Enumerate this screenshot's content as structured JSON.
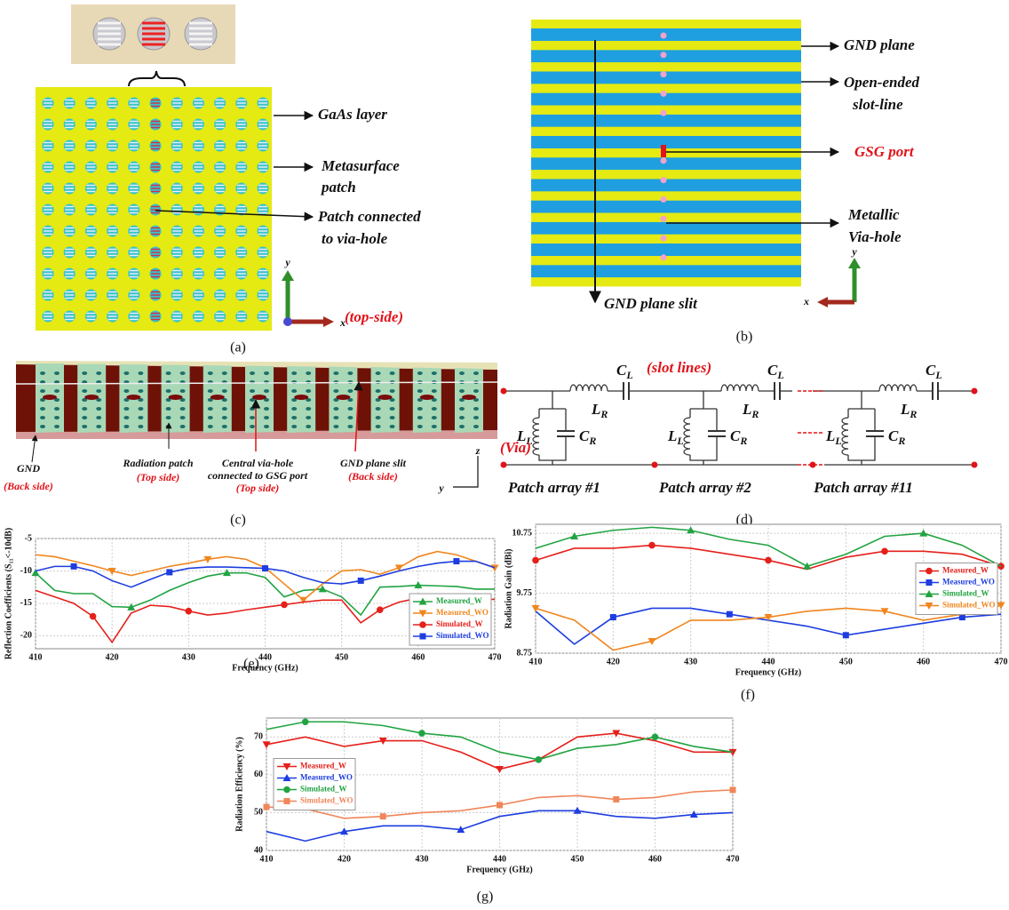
{
  "panels": {
    "a": {
      "labels": [
        "GaAs layer",
        [
          "Metasurface",
          "patch"
        ],
        [
          "Patch connected",
          "to via-hole"
        ]
      ],
      "axis_y": "y",
      "axis_x": "x",
      "side": "(top-side)",
      "caption": "(a)"
    },
    "b": {
      "labels": [
        "GND plane",
        [
          "Open-ended",
          "slot-line"
        ],
        "GSG port",
        [
          "Metallic",
          "Via-hole"
        ],
        "GND plane slit"
      ],
      "axis_y": "y",
      "axis_x": "x",
      "caption": "(b)"
    },
    "c": {
      "labels": [
        [
          "GND",
          "(Back side)"
        ],
        [
          "Radiation patch",
          "(Top side)"
        ],
        [
          "Central via-hole",
          "connected to GSG port",
          "(Top side)"
        ],
        [
          "GND plane slit",
          "(Back side)"
        ]
      ],
      "axis_z": "z",
      "axis_y": "y",
      "caption": "(c)"
    },
    "d": {
      "cl": [
        "C",
        "L"
      ],
      "lr": [
        "L",
        "R"
      ],
      "ll": [
        "L",
        "L"
      ],
      "cr": [
        "C",
        "R"
      ],
      "slot": "(slot lines)",
      "via": "(Via)",
      "arrays": [
        "Patch array #1",
        "Patch array #2",
        "Patch array #11"
      ],
      "caption": "(d)"
    }
  },
  "captions": {
    "e": "(e)",
    "f": "(f)",
    "g": "(g)"
  },
  "chart_data": [
    {
      "type": "line",
      "xlabel": "Frequency (GHz)",
      "ylabel": "Reflection Coefficients (S₁₁<-10dB)",
      "x": [
        410,
        412.5,
        415,
        417.5,
        420,
        422.5,
        425,
        427.5,
        430,
        432.5,
        435,
        437.5,
        440,
        442.5,
        445,
        447.5,
        450,
        452.5,
        455,
        457.5,
        460,
        462.5,
        465,
        467.5,
        470
      ],
      "xlim": [
        410,
        470
      ],
      "xticks": [
        410,
        420,
        430,
        440,
        450,
        460,
        470
      ],
      "ylim": [
        -22,
        -5
      ],
      "yticks": [
        -5,
        -10,
        -15,
        -20
      ],
      "grid": true,
      "legend": "lower right",
      "series": [
        {
          "name": "Measured_W",
          "color": "#21a341",
          "marker": "triangle-up",
          "values": [
            -10.3,
            -13,
            -13.5,
            -13.5,
            -15.5,
            -15.6,
            -14.5,
            -13,
            -11.8,
            -10.8,
            -10.3,
            -10.3,
            -11,
            -14,
            -13,
            -12.8,
            -14,
            -16.8,
            -12.5,
            -12.4,
            -12.2,
            -12.3,
            -12.4,
            -12.8,
            -12.8
          ]
        },
        {
          "name": "Measured_WO",
          "color": "#f0861e",
          "marker": "triangle-down",
          "values": [
            -7.5,
            -7.8,
            -8.5,
            -9.2,
            -10,
            -10.7,
            -10,
            -9.3,
            -8.8,
            -8.2,
            -7.8,
            -8.2,
            -9.5,
            -12,
            -14.5,
            -12,
            -10,
            -9.8,
            -10.5,
            -9.5,
            -7.8,
            -7,
            -7.5,
            -8.5,
            -9.5
          ]
        },
        {
          "name": "Simulated_W",
          "color": "#e5201b",
          "marker": "circle",
          "values": [
            -13,
            -14,
            -15,
            -17,
            -21,
            -16.5,
            -15.3,
            -15.5,
            -16.2,
            -16.8,
            -16.5,
            -16,
            -15.6,
            -15.2,
            -14.8,
            -14.5,
            -14.5,
            -18,
            -16,
            -14.8,
            -14.2,
            -14,
            -14,
            -14.2,
            -14.4
          ]
        },
        {
          "name": "Simulated_WO",
          "color": "#1d3de0",
          "marker": "square",
          "values": [
            -10,
            -9.3,
            -9.3,
            -10,
            -11.5,
            -12.5,
            -11.3,
            -10.2,
            -9.6,
            -9.4,
            -9.4,
            -9.5,
            -9.6,
            -10,
            -11,
            -11.8,
            -12,
            -11.5,
            -10.8,
            -10,
            -9.3,
            -8.8,
            -8.5,
            -8.5,
            -9.5
          ]
        }
      ]
    },
    {
      "type": "line",
      "xlabel": "Frequency (GHz)",
      "ylabel": "Radiation Gain (dBi)",
      "x": [
        410,
        415,
        420,
        425,
        430,
        435,
        440,
        445,
        450,
        455,
        460,
        465,
        470
      ],
      "xlim": [
        410,
        470
      ],
      "xticks": [
        410,
        420,
        430,
        440,
        450,
        460,
        470
      ],
      "ylim": [
        8.75,
        10.9
      ],
      "yticks": [
        8.75,
        9.75,
        10.75
      ],
      "grid": true,
      "legend": "center right",
      "series": [
        {
          "name": "Measured_W",
          "color": "#e5201b",
          "marker": "circle",
          "values": [
            10.3,
            10.5,
            10.5,
            10.55,
            10.5,
            10.4,
            10.3,
            10.15,
            10.35,
            10.45,
            10.45,
            10.4,
            10.2
          ]
        },
        {
          "name": "Measured_WO",
          "color": "#1d3de0",
          "marker": "square",
          "values": [
            9.45,
            8.9,
            9.35,
            9.5,
            9.5,
            9.4,
            9.3,
            9.2,
            9.05,
            9.15,
            9.25,
            9.35,
            9.4
          ]
        },
        {
          "name": "Simulated_W",
          "color": "#21a341",
          "marker": "triangle-up",
          "values": [
            10.5,
            10.7,
            10.8,
            10.85,
            10.8,
            10.65,
            10.55,
            10.2,
            10.4,
            10.7,
            10.75,
            10.55,
            10.2
          ]
        },
        {
          "name": "Simulated_WO",
          "color": "#f0861e",
          "marker": "triangle-down",
          "values": [
            9.5,
            9.3,
            8.8,
            8.95,
            9.3,
            9.3,
            9.35,
            9.45,
            9.5,
            9.45,
            9.3,
            9.4,
            9.55
          ]
        }
      ]
    },
    {
      "type": "line",
      "xlabel": "Frequency (GHz)",
      "ylabel": "Radiation Efficiency (%)",
      "x": [
        410,
        415,
        420,
        425,
        430,
        435,
        440,
        445,
        450,
        455,
        460,
        465,
        470
      ],
      "xlim": [
        410,
        470
      ],
      "xticks": [
        410,
        420,
        430,
        440,
        450,
        460,
        470
      ],
      "ylim": [
        40,
        75
      ],
      "yticks": [
        40,
        50,
        60,
        70
      ],
      "grid": true,
      "legend": "center left",
      "series": [
        {
          "name": "Measured_W",
          "color": "#e5201b",
          "marker": "triangle-down",
          "values": [
            68,
            70,
            67.5,
            69,
            69,
            66,
            61.5,
            64,
            70,
            71,
            69,
            66,
            66
          ]
        },
        {
          "name": "Measured_WO",
          "color": "#1d3de0",
          "marker": "triangle-up",
          "values": [
            45,
            42.5,
            45,
            46.5,
            46.5,
            45.5,
            49,
            50.5,
            50.5,
            49,
            48.5,
            49.5,
            50
          ]
        },
        {
          "name": "Simulated_W",
          "color": "#21a341",
          "marker": "circle",
          "values": [
            72,
            74,
            74,
            73,
            71,
            70,
            66,
            64,
            67,
            68,
            70,
            67.5,
            66
          ]
        },
        {
          "name": "Simulated_WO",
          "color": "#f0865a",
          "marker": "square",
          "values": [
            51.5,
            51,
            48.5,
            49,
            50,
            50.5,
            52,
            54,
            54.5,
            53.5,
            54,
            55.5,
            56
          ]
        }
      ]
    }
  ]
}
